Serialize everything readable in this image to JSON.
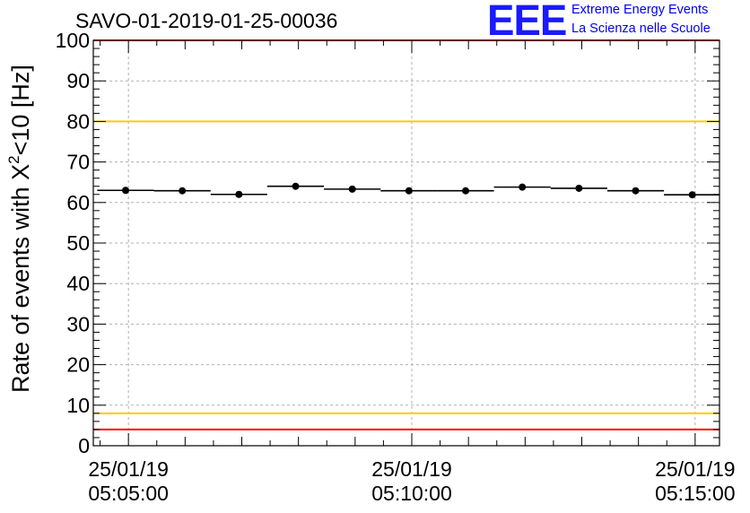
{
  "header": {
    "run_title": "SAVO-01-2019-01-25-00036",
    "logo": "EEE",
    "org_line1": "Extreme Energy Events",
    "org_line2": "La Scienza nelle Scuole"
  },
  "chart_data": {
    "type": "scatter",
    "title": "SAVO-01-2019-01-25-00036",
    "ylabel_prefix": "Rate of events with X",
    "ylabel_sup": "2",
    "ylabel_suffix": "<10 [Hz]",
    "ylim": [
      0,
      100
    ],
    "yticks": [
      0,
      10,
      20,
      30,
      40,
      50,
      60,
      70,
      80,
      90,
      100
    ],
    "xlim_minutes": [
      -0.62,
      10.43
    ],
    "xticks": [
      {
        "minutes": 0,
        "line1": "25/01/19",
        "line2": "05:05:00"
      },
      {
        "minutes": 5,
        "line1": "25/01/19",
        "line2": "05:10:00"
      },
      {
        "minutes": 10,
        "line1": "25/01/19",
        "line2": "05:15:00"
      }
    ],
    "grid": true,
    "reference_lines": [
      {
        "y": 100,
        "color": "#ff0000"
      },
      {
        "y": 80,
        "color": "#ffcc00"
      },
      {
        "y": 8,
        "color": "#ffcc00"
      },
      {
        "y": 4,
        "color": "#ff0000"
      }
    ],
    "series": [
      {
        "name": "rate",
        "bin_width_minutes": 1.0,
        "x_minutes": [
          -0.05,
          0.95,
          1.95,
          2.95,
          3.95,
          4.95,
          5.95,
          6.95,
          7.95,
          8.95,
          9.95
        ],
        "values": [
          63.0,
          62.9,
          62.0,
          64.0,
          63.3,
          62.9,
          62.9,
          63.8,
          63.5,
          62.9,
          61.9
        ],
        "errors": [
          0.8,
          0.8,
          0.8,
          0.8,
          0.8,
          0.8,
          0.8,
          0.8,
          0.8,
          0.8,
          0.8
        ]
      }
    ]
  }
}
